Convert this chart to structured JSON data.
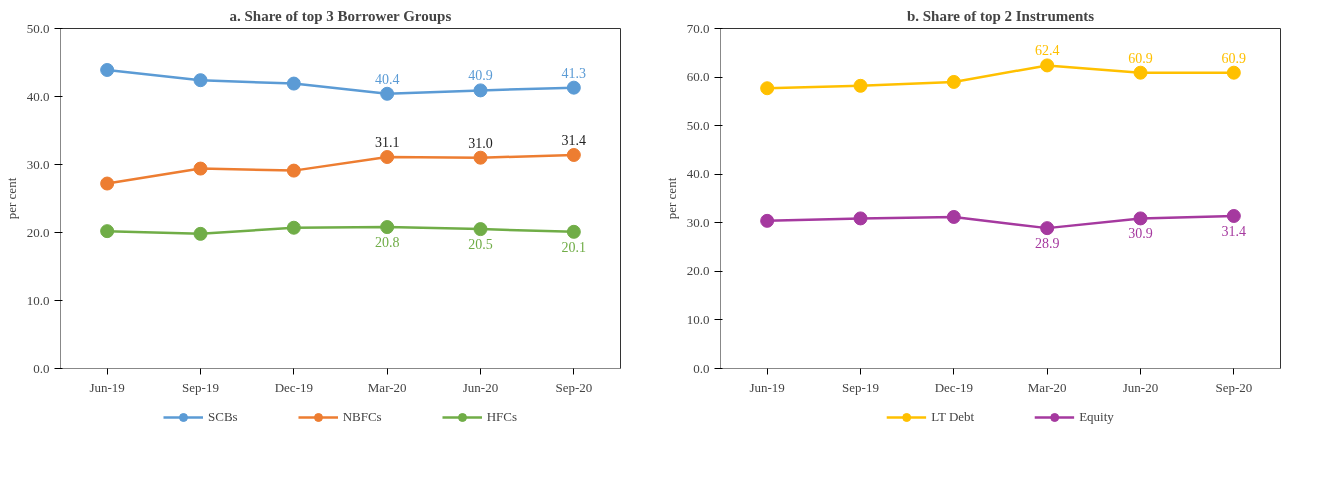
{
  "chart_data": [
    {
      "type": "line",
      "title": "a. Share of top 3 Borrower Groups",
      "ylabel": "per cent",
      "categories": [
        "Jun-19",
        "Sep-19",
        "Dec-19",
        "Mar-20",
        "Jun-20",
        "Sep-20"
      ],
      "series": [
        {
          "name": "SCBs",
          "color": "#5b9bd5",
          "values": [
            43.9,
            42.4,
            41.9,
            40.4,
            40.9,
            41.3
          ],
          "value_labels": [
            null,
            null,
            null,
            "40.4",
            "40.9",
            "41.3"
          ]
        },
        {
          "name": "NBFCs",
          "color": "#ed7d31",
          "values": [
            27.2,
            29.4,
            29.1,
            31.1,
            31.0,
            31.4
          ],
          "value_labels": [
            null,
            null,
            null,
            "31.1",
            "31.0",
            "31.4"
          ]
        },
        {
          "name": "HFCs",
          "color": "#70ad47",
          "values": [
            20.2,
            19.8,
            20.7,
            20.8,
            20.5,
            20.1
          ],
          "value_labels": [
            null,
            null,
            null,
            "20.8",
            "20.5",
            "20.1"
          ]
        }
      ],
      "ylim": [
        0,
        50
      ],
      "yticks": [
        {
          "value": 0,
          "label": "0.0"
        },
        {
          "value": 10,
          "label": "10.0"
        },
        {
          "value": 20,
          "label": "20.0"
        },
        {
          "value": 30,
          "label": "30.0"
        },
        {
          "value": 40,
          "label": "40.0"
        },
        {
          "value": 50,
          "label": "50.0"
        }
      ],
      "grid": false,
      "legend": "bottom",
      "marker": "circle",
      "line_style": "solid"
    },
    {
      "type": "line",
      "title": "b. Share of top 2 Instruments",
      "ylabel": "per cent",
      "categories": [
        "Jun-19",
        "Sep-19",
        "Dec-19",
        "Mar-20",
        "Jun-20",
        "Sep-20"
      ],
      "series": [
        {
          "name": "LT Debt",
          "color": "#ffc000",
          "values": [
            57.7,
            58.2,
            59.0,
            62.4,
            60.9,
            60.9
          ],
          "value_labels": [
            null,
            null,
            null,
            "62.4",
            "60.9",
            "60.9"
          ]
        },
        {
          "name": "Equity",
          "color": "#a5399f",
          "values": [
            30.4,
            30.9,
            31.2,
            28.9,
            30.9,
            31.4
          ],
          "value_labels": [
            null,
            null,
            null,
            "28.9",
            "30.9",
            "31.4"
          ]
        }
      ],
      "ylim": [
        0,
        70
      ],
      "yticks": [
        {
          "value": 0,
          "label": "0.0"
        },
        {
          "value": 10,
          "label": "10.0"
        },
        {
          "value": 20,
          "label": "20.0"
        },
        {
          "value": 30,
          "label": "30.0"
        },
        {
          "value": 40,
          "label": "40.0"
        },
        {
          "value": 50,
          "label": "50.0"
        },
        {
          "value": 60,
          "label": "60.0"
        },
        {
          "value": 70,
          "label": "70.0"
        }
      ],
      "grid": false,
      "legend": "bottom",
      "marker": "circle",
      "line_style": "solid"
    }
  ]
}
